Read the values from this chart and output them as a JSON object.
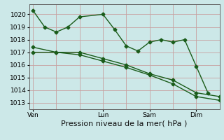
{
  "title": "",
  "xlabel": "Pression niveau de la mer( hPa )",
  "ylabel": "",
  "background_color": "#cce8e8",
  "grid_color": "#c8a0a0",
  "line_color": "#1a5c1a",
  "ylim": [
    1012.5,
    1020.8
  ],
  "yticks": [
    1013,
    1014,
    1015,
    1016,
    1017,
    1018,
    1019,
    1020
  ],
  "xtick_labels": [
    "Ven",
    "Lun",
    "Sam",
    "Dim"
  ],
  "xtick_positions": [
    0,
    36,
    60,
    84
  ],
  "xlim": [
    -2,
    96
  ],
  "line1_x": [
    0,
    6,
    12,
    18,
    24,
    36,
    42,
    48,
    54,
    60,
    66,
    72,
    78,
    84,
    90
  ],
  "line1_y": [
    1020.3,
    1019.0,
    1018.6,
    1019.0,
    1019.8,
    1020.0,
    1018.8,
    1017.5,
    1017.1,
    1017.8,
    1018.0,
    1017.8,
    1018.0,
    1015.9,
    1013.8
  ],
  "line2_x": [
    0,
    12,
    24,
    36,
    48,
    60,
    72,
    84,
    96
  ],
  "line2_y": [
    1017.4,
    1017.0,
    1017.0,
    1016.5,
    1016.0,
    1015.3,
    1014.8,
    1013.8,
    1013.5
  ],
  "line3_x": [
    0,
    12,
    24,
    36,
    48,
    60,
    72,
    84,
    96
  ],
  "line3_y": [
    1017.0,
    1017.0,
    1016.8,
    1016.3,
    1015.8,
    1015.2,
    1014.5,
    1013.5,
    1013.2
  ],
  "marker": "D",
  "marker_size": 2.5,
  "linewidth": 1.0,
  "xlabel_fontsize": 8,
  "tick_fontsize": 6.5
}
